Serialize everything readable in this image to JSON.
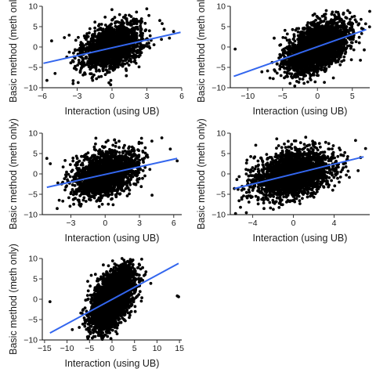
{
  "chart_data": [
    {
      "type": "scatter",
      "xlabel": "Interaction (using UB)",
      "ylabel": "Basic method (meth only)",
      "xlim": [
        -6,
        6
      ],
      "ylim": [
        -10,
        10
      ],
      "xticks": [
        -6,
        -3,
        0,
        3,
        6
      ],
      "yticks": [
        -10,
        -5,
        0,
        5,
        10
      ],
      "cloud": {
        "mean": [
          0,
          0
        ],
        "sd": [
          1.3,
          2.8
        ],
        "corr": 0.38,
        "n": 1800
      },
      "outliers": [
        [
          -5.6,
          -8.2
        ],
        [
          -4.9,
          -6.5
        ],
        [
          -5.2,
          1.5
        ],
        [
          5.3,
          3.8
        ],
        [
          -4.1,
          2.3
        ],
        [
          2.0,
          5.8
        ]
      ],
      "fit_line": {
        "x": [
          -5.9,
          5.9
        ],
        "y": [
          -4.0,
          3.6
        ],
        "color": "#3366ee"
      }
    },
    {
      "type": "scatter",
      "xlabel": "Interaction (using UB)",
      "ylabel": "Basic method (meth only)",
      "xlim": [
        -12.5,
        7.5
      ],
      "ylim": [
        -10,
        10
      ],
      "xticks": [
        -10,
        -5,
        0,
        5
      ],
      "yticks": [
        -10,
        -5,
        0,
        5,
        10
      ],
      "cloud": {
        "mean": [
          0,
          0
        ],
        "sd": [
          2.1,
          3.0
        ],
        "corr": 0.48,
        "n": 3000
      },
      "outliers": [
        [
          -11.8,
          -0.5
        ],
        [
          -6.5,
          -3.8
        ],
        [
          -5.8,
          -4.2
        ]
      ],
      "fit_line": {
        "x": [
          -12,
          7
        ],
        "y": [
          -7.2,
          4.3
        ],
        "color": "#3366ee"
      }
    },
    {
      "type": "scatter",
      "xlabel": "Interaction (using UB)",
      "ylabel": "Basic method (meth only)",
      "xlim": [
        -5.5,
        6.7
      ],
      "ylim": [
        -10,
        10
      ],
      "xticks": [
        -3,
        0,
        3,
        6
      ],
      "yticks": [
        -10,
        -5,
        0,
        5,
        10
      ],
      "cloud": {
        "mean": [
          0,
          0
        ],
        "sd": [
          1.4,
          2.8
        ],
        "corr": 0.38,
        "n": 2000
      },
      "outliers": [
        [
          -5.1,
          3.8
        ],
        [
          -4.2,
          -8.5
        ],
        [
          6.3,
          3.2
        ],
        [
          5.7,
          6.1
        ],
        [
          -4.8,
          2.5
        ]
      ],
      "fit_line": {
        "x": [
          -5.1,
          6.3
        ],
        "y": [
          -3.3,
          3.8
        ],
        "color": "#3366ee"
      }
    },
    {
      "type": "scatter",
      "xlabel": "Interaction (using UB)",
      "ylabel": "Basic method (meth only)",
      "xlim": [
        -6.2,
        7.5
      ],
      "ylim": [
        -10,
        10
      ],
      "xticks": [
        -4,
        0,
        4
      ],
      "yticks": [
        -10,
        -5,
        0,
        5,
        10
      ],
      "cloud": {
        "mean": [
          0,
          0
        ],
        "sd": [
          1.8,
          2.8
        ],
        "corr": 0.33,
        "n": 2600
      },
      "outliers": [
        [
          -5.8,
          -3.6
        ],
        [
          6.6,
          4.0
        ],
        [
          -5.2,
          -8.2
        ]
      ],
      "fit_line": {
        "x": [
          -5.8,
          6.9
        ],
        "y": [
          -3.6,
          4.2
        ],
        "color": "#3366ee"
      }
    },
    {
      "type": "scatter",
      "xlabel": "Interaction (using UB)",
      "ylabel": "Basic method (meth only)",
      "xlim": [
        -15.5,
        15.5
      ],
      "ylim": [
        -10,
        10
      ],
      "xticks": [
        -15,
        -10,
        -5,
        0,
        5,
        10,
        15
      ],
      "yticks": [
        -10,
        -5,
        0,
        5,
        10
      ],
      "cloud": {
        "mean": [
          0,
          0
        ],
        "sd": [
          2.3,
          3.6
        ],
        "corr": 0.55,
        "n": 3600
      },
      "outliers": [
        [
          -13.8,
          -0.6
        ],
        [
          14.5,
          0.8
        ],
        [
          14.8,
          0.6
        ]
      ],
      "fit_line": {
        "x": [
          -13.8,
          14.8
        ],
        "y": [
          -8.3,
          8.8
        ],
        "color": "#3366ee"
      }
    }
  ]
}
